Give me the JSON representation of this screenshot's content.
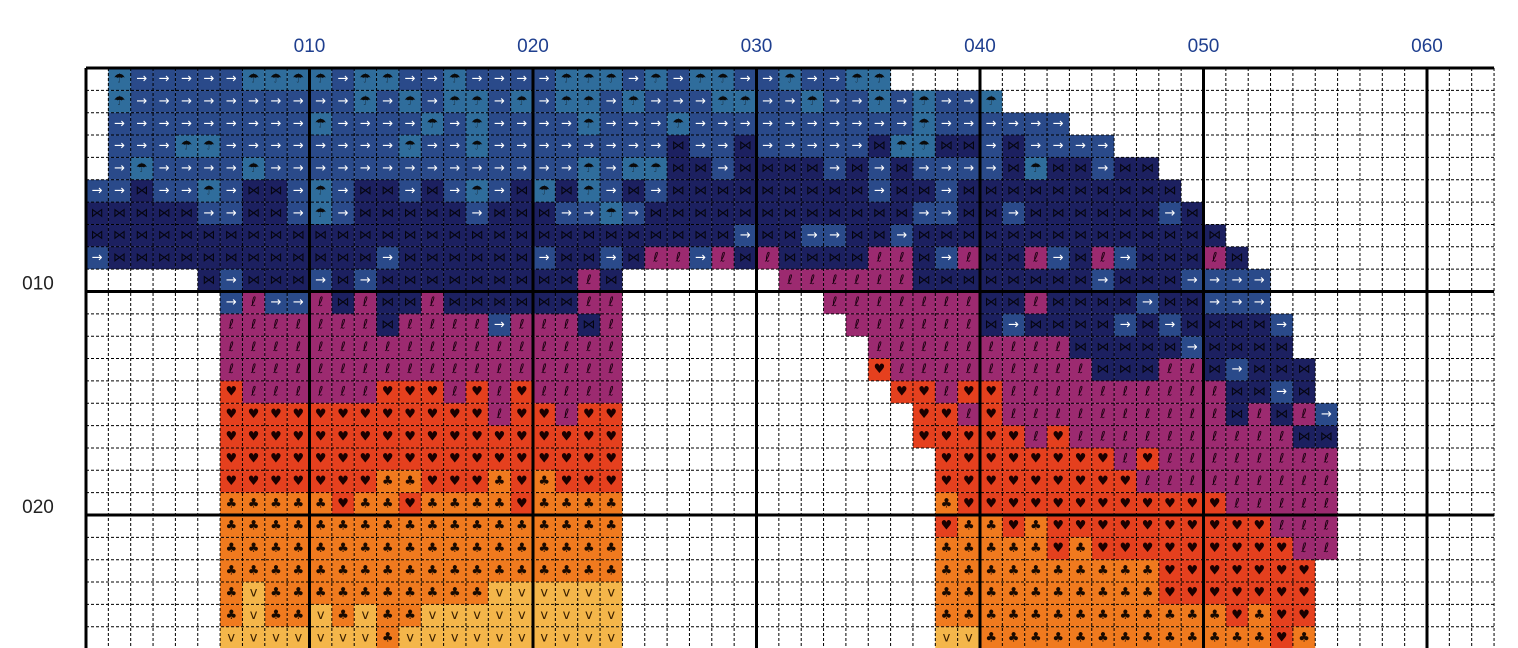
{
  "column_labels": [
    "010",
    "020",
    "030",
    "040",
    "050",
    "060"
  ],
  "row_labels": [
    "010",
    "020"
  ]
}
